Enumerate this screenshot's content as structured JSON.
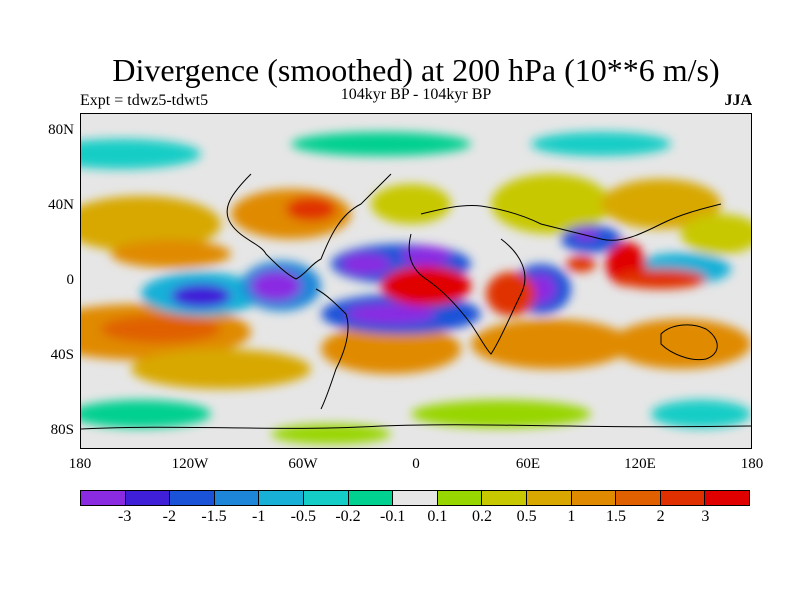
{
  "title": "Divergence (smoothed) at 200 hPa (10**6 m/s)",
  "subtitle": "104kyr BP - 104kyr BP",
  "experiment": "Expt = tdwz5-tdwt5",
  "season": "JJA",
  "y_axis_labels": [
    "80N",
    "40N",
    "0",
    "40S",
    "80S"
  ],
  "x_axis_labels": [
    "180",
    "120W",
    "60W",
    "0",
    "60E",
    "120E",
    "180"
  ],
  "colorbar": {
    "colors": [
      "#8a2be2",
      "#3f1fd8",
      "#1a52d8",
      "#1d86d8",
      "#19b0d8",
      "#13cdc6",
      "#00d090",
      "#e6e6e6",
      "#98d600",
      "#c8c800",
      "#d8a800",
      "#e08a00",
      "#e06000",
      "#e03000",
      "#e00000"
    ],
    "labels": [
      "-3",
      "-2",
      "-1.5",
      "-1",
      "-0.5",
      "-0.2",
      "-0.1",
      "0.1",
      "0.2",
      "0.5",
      "1",
      "1.5",
      "2",
      "3"
    ]
  }
}
